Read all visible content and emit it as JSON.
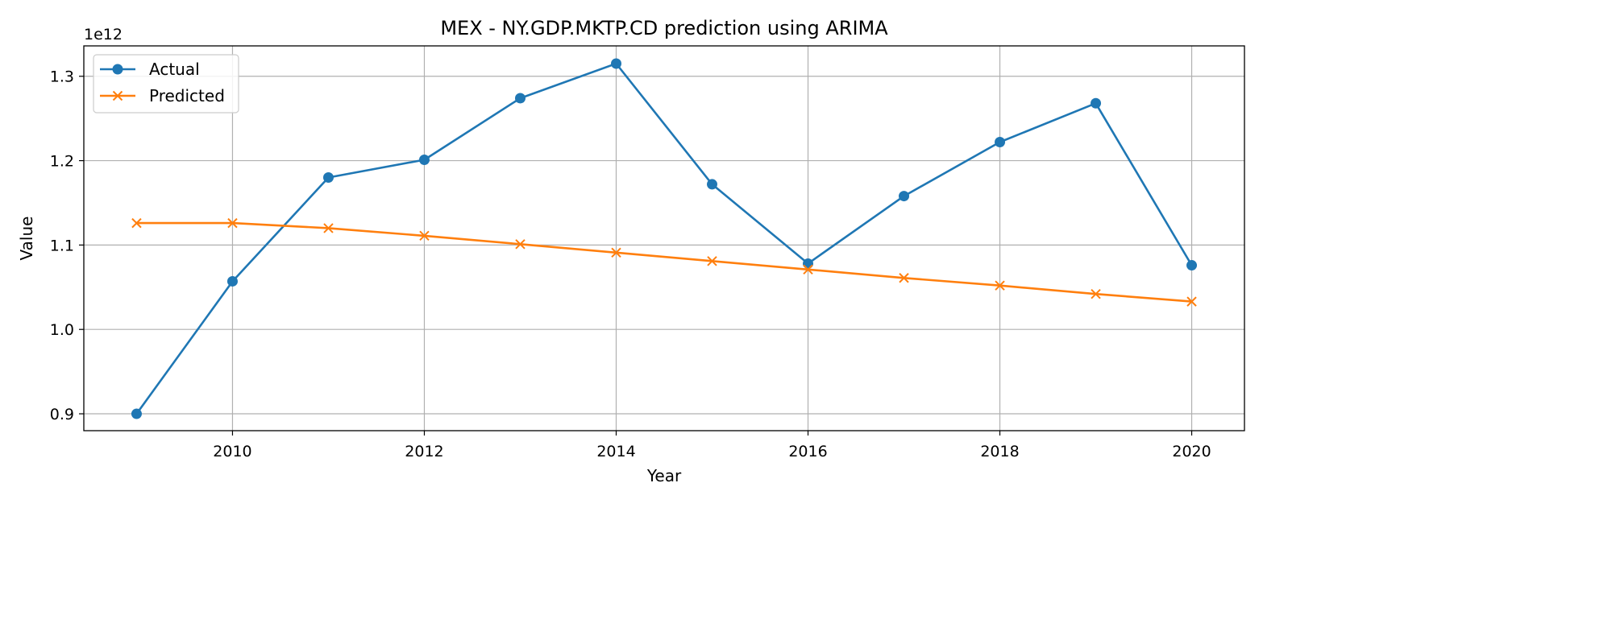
{
  "chart_data": {
    "type": "line",
    "title": "MEX - NY.GDP.MKTP.CD prediction using ARIMA",
    "xlabel": "Year",
    "ylabel": "Value",
    "y_offset_label": "1e12",
    "xlim": [
      2008.45,
      2020.55
    ],
    "ylim": [
      0.88,
      1.336
    ],
    "xticks": [
      2010,
      2012,
      2014,
      2016,
      2018,
      2020
    ],
    "yticks": [
      0.9,
      1.0,
      1.1,
      1.2,
      1.3
    ],
    "ytick_labels": [
      "0.9",
      "1.0",
      "1.1",
      "1.2",
      "1.3"
    ],
    "grid": true,
    "legend_position": "upper-left",
    "x": [
      2009,
      2010,
      2011,
      2012,
      2013,
      2014,
      2015,
      2016,
      2017,
      2018,
      2019,
      2020
    ],
    "series": [
      {
        "name": "Actual",
        "color": "#1f77b4",
        "marker": "circle",
        "values": [
          0.9,
          1.057,
          1.18,
          1.201,
          1.274,
          1.315,
          1.172,
          1.078,
          1.158,
          1.222,
          1.268,
          1.076
        ]
      },
      {
        "name": "Predicted",
        "color": "#ff7f0e",
        "marker": "x",
        "values": [
          1.126,
          1.126,
          1.12,
          1.111,
          1.101,
          1.091,
          1.081,
          1.071,
          1.061,
          1.052,
          1.042,
          1.033
        ]
      }
    ]
  }
}
